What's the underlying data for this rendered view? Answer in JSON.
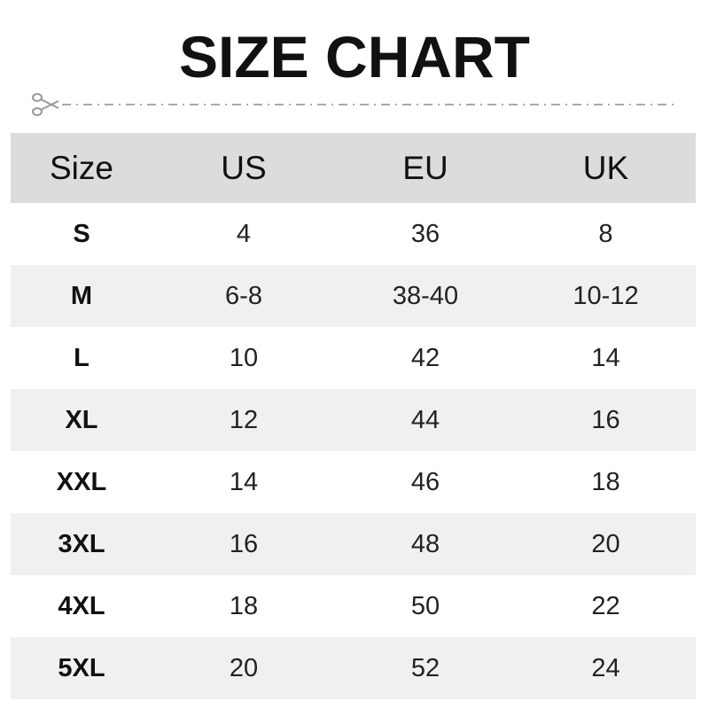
{
  "title": "SIZE CHART",
  "icons": {
    "cut_line": "scissors-icon"
  },
  "chart_data": {
    "type": "table",
    "columns": [
      "Size",
      "US",
      "EU",
      "UK"
    ],
    "rows": [
      [
        "S",
        "4",
        "36",
        "8"
      ],
      [
        "M",
        "6-8",
        "38-40",
        "10-12"
      ],
      [
        "L",
        "10",
        "42",
        "14"
      ],
      [
        "XL",
        "12",
        "44",
        "16"
      ],
      [
        "XXL",
        "14",
        "46",
        "18"
      ],
      [
        "3XL",
        "16",
        "48",
        "20"
      ],
      [
        "4XL",
        "18",
        "50",
        "22"
      ],
      [
        "5XL",
        "20",
        "52",
        "24"
      ]
    ]
  }
}
